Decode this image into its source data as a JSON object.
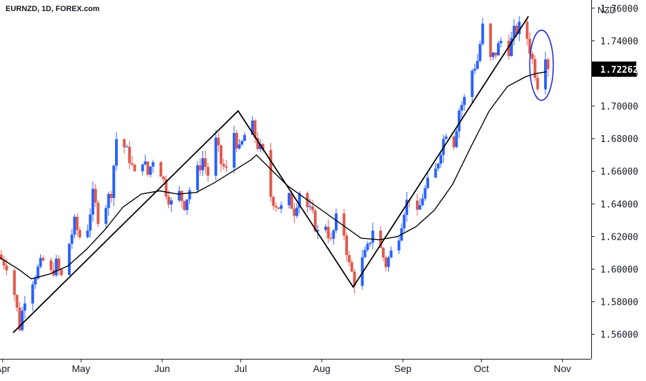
{
  "header": {
    "symbol_line": "EURNZD, 1D, FOREX.com",
    "currency": "NZD"
  },
  "colors": {
    "up": "#2962ff",
    "down": "#e05a4e",
    "line": "#000000",
    "circle": "#1f2bd6",
    "axis": "#131722",
    "price_tag_bg": "#000000"
  },
  "last_price": {
    "label": "1.72262",
    "value": 1.72262
  },
  "chart_data": {
    "type": "candlestick",
    "title": "",
    "xlabel": "",
    "ylabel": "NZD",
    "ylim": [
      1.545,
      1.765
    ],
    "y_ticks": [
      1.56,
      1.58,
      1.6,
      1.62,
      1.64,
      1.66,
      1.68,
      1.7,
      1.72,
      1.74,
      1.76
    ],
    "y_tick_labels": [
      "1.56000",
      "1.58000",
      "1.60000",
      "1.62000",
      "1.64000",
      "1.66000",
      "1.68000",
      "1.70000",
      "1.72000",
      "1.74000",
      "1.76000"
    ],
    "x_tick_labels": [
      {
        "label": "Apr",
        "date": "2021-04-01"
      },
      {
        "label": "May",
        "date": "2021-05-01"
      },
      {
        "label": "Jun",
        "date": "2021-06-01"
      },
      {
        "label": "Jul",
        "date": "2021-07-01"
      },
      {
        "label": "Aug",
        "date": "2021-08-01"
      },
      {
        "label": "Sep",
        "date": "2021-09-01"
      },
      {
        "label": "Oct",
        "date": "2021-10-01"
      },
      {
        "label": "Nov",
        "date": "2021-11-01"
      }
    ],
    "x_range": [
      "2021-03-31",
      "2021-11-12"
    ],
    "price_anchors": [
      [
        "2021-03-31",
        1.606
      ],
      [
        "2021-04-02",
        1.603
      ],
      [
        "2021-04-05",
        1.585
      ],
      [
        "2021-04-07",
        1.565
      ],
      [
        "2021-04-09",
        1.583
      ],
      [
        "2021-04-12",
        1.594
      ],
      [
        "2021-04-14",
        1.6
      ],
      [
        "2021-04-16",
        1.605
      ],
      [
        "2021-04-19",
        1.597
      ],
      [
        "2021-04-21",
        1.603
      ],
      [
        "2021-04-23",
        1.595
      ],
      [
        "2021-04-26",
        1.616
      ],
      [
        "2021-04-28",
        1.628
      ],
      [
        "2021-04-30",
        1.62
      ],
      [
        "2021-05-03",
        1.626
      ],
      [
        "2021-05-05",
        1.645
      ],
      [
        "2021-05-07",
        1.632
      ],
      [
        "2021-05-10",
        1.64
      ],
      [
        "2021-05-12",
        1.648
      ],
      [
        "2021-05-14",
        1.68
      ],
      [
        "2021-05-17",
        1.675
      ],
      [
        "2021-05-19",
        1.668
      ],
      [
        "2021-05-21",
        1.657
      ],
      [
        "2021-05-24",
        1.668
      ],
      [
        "2021-05-26",
        1.658
      ],
      [
        "2021-05-28",
        1.668
      ],
      [
        "2021-05-31",
        1.66
      ],
      [
        "2021-06-02",
        1.648
      ],
      [
        "2021-06-04",
        1.64
      ],
      [
        "2021-06-07",
        1.646
      ],
      [
        "2021-06-09",
        1.64
      ],
      [
        "2021-06-11",
        1.649
      ],
      [
        "2021-06-14",
        1.66
      ],
      [
        "2021-06-16",
        1.668
      ],
      [
        "2021-06-18",
        1.658
      ],
      [
        "2021-06-21",
        1.678
      ],
      [
        "2021-06-23",
        1.665
      ],
      [
        "2021-06-25",
        1.66
      ],
      [
        "2021-06-28",
        1.684
      ],
      [
        "2021-06-30",
        1.672
      ],
      [
        "2021-07-02",
        1.682
      ],
      [
        "2021-07-05",
        1.687
      ],
      [
        "2021-07-07",
        1.676
      ],
      [
        "2021-07-09",
        1.67
      ],
      [
        "2021-07-12",
        1.645
      ],
      [
        "2021-07-14",
        1.64
      ],
      [
        "2021-07-16",
        1.637
      ],
      [
        "2021-07-19",
        1.643
      ],
      [
        "2021-07-21",
        1.636
      ],
      [
        "2021-07-23",
        1.648
      ],
      [
        "2021-07-26",
        1.638
      ],
      [
        "2021-07-28",
        1.632
      ],
      [
        "2021-07-30",
        1.622
      ],
      [
        "2021-08-02",
        1.628
      ],
      [
        "2021-08-04",
        1.616
      ],
      [
        "2021-08-06",
        1.63
      ],
      [
        "2021-08-09",
        1.622
      ],
      [
        "2021-08-11",
        1.602
      ],
      [
        "2021-08-13",
        1.593
      ],
      [
        "2021-08-16",
        1.605
      ],
      [
        "2021-08-18",
        1.612
      ],
      [
        "2021-08-20",
        1.625
      ],
      [
        "2021-08-23",
        1.612
      ],
      [
        "2021-08-25",
        1.603
      ],
      [
        "2021-08-27",
        1.61
      ],
      [
        "2021-08-30",
        1.622
      ],
      [
        "2021-09-01",
        1.637
      ],
      [
        "2021-09-03",
        1.645
      ],
      [
        "2021-09-06",
        1.632
      ],
      [
        "2021-09-08",
        1.645
      ],
      [
        "2021-09-10",
        1.652
      ],
      [
        "2021-09-13",
        1.66
      ],
      [
        "2021-09-15",
        1.674
      ],
      [
        "2021-09-17",
        1.685
      ],
      [
        "2021-09-20",
        1.678
      ],
      [
        "2021-09-22",
        1.698
      ],
      [
        "2021-09-24",
        1.704
      ],
      [
        "2021-09-27",
        1.722
      ],
      [
        "2021-09-29",
        1.728
      ],
      [
        "2021-10-01",
        1.748
      ],
      [
        "2021-10-04",
        1.728
      ],
      [
        "2021-10-06",
        1.733
      ],
      [
        "2021-10-08",
        1.74
      ],
      [
        "2021-10-11",
        1.735
      ],
      [
        "2021-10-13",
        1.745
      ],
      [
        "2021-10-15",
        1.748
      ],
      [
        "2021-10-18",
        1.742
      ],
      [
        "2021-10-20",
        1.728
      ],
      [
        "2021-10-22",
        1.714
      ],
      [
        "2021-10-25",
        1.733
      ],
      [
        "2021-10-26",
        1.7226
      ]
    ],
    "series": [
      {
        "name": "",
        "type": "line",
        "points": [
          [
            "2021-03-31",
            1.607
          ],
          [
            "2021-04-07",
            1.6
          ],
          [
            "2021-04-12",
            1.594
          ],
          [
            "2021-04-19",
            1.597
          ],
          [
            "2021-04-26",
            1.602
          ],
          [
            "2021-05-03",
            1.612
          ],
          [
            "2021-05-10",
            1.624
          ],
          [
            "2021-05-17",
            1.638
          ],
          [
            "2021-05-24",
            1.646
          ],
          [
            "2021-05-31",
            1.648
          ],
          [
            "2021-06-07",
            1.646
          ],
          [
            "2021-06-14",
            1.647
          ],
          [
            "2021-06-21",
            1.653
          ],
          [
            "2021-06-28",
            1.66
          ],
          [
            "2021-07-05",
            1.667
          ],
          [
            "2021-07-07",
            1.67
          ],
          [
            "2021-07-12",
            1.662
          ],
          [
            "2021-07-19",
            1.651
          ],
          [
            "2021-07-26",
            1.643
          ],
          [
            "2021-08-02",
            1.635
          ],
          [
            "2021-08-09",
            1.627
          ],
          [
            "2021-08-16",
            1.619
          ],
          [
            "2021-08-23",
            1.618
          ],
          [
            "2021-08-30",
            1.62
          ],
          [
            "2021-09-06",
            1.626
          ],
          [
            "2021-09-13",
            1.636
          ],
          [
            "2021-09-20",
            1.652
          ],
          [
            "2021-09-27",
            1.675
          ],
          [
            "2021-10-04",
            1.697
          ],
          [
            "2021-10-11",
            1.712
          ],
          [
            "2021-10-18",
            1.718
          ],
          [
            "2021-10-22",
            1.72
          ],
          [
            "2021-10-26",
            1.721
          ]
        ]
      },
      {
        "name": "",
        "type": "line",
        "points": [
          [
            "2021-04-05",
            1.561
          ],
          [
            "2021-06-30",
            1.697
          ],
          [
            "2021-08-13",
            1.589
          ],
          [
            "2021-10-19",
            1.755
          ]
        ]
      }
    ],
    "annotations": [
      {
        "type": "ellipse",
        "center": [
          "2021-10-24",
          1.725
        ],
        "radius_y": 0.0215
      }
    ],
    "grid": false,
    "legend": "none"
  }
}
